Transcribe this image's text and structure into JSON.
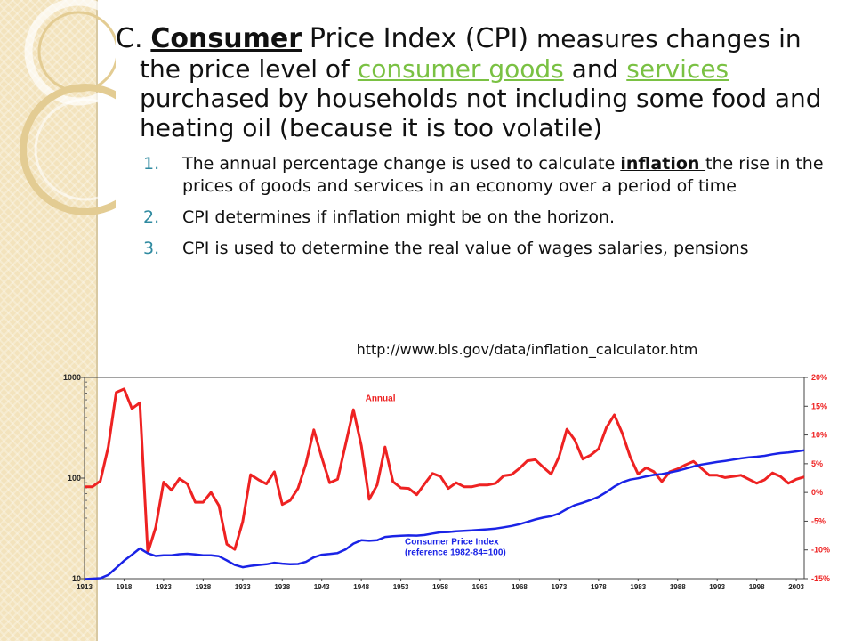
{
  "slide": {
    "heading": {
      "marker": "C.",
      "keyword": "Consumer",
      "title_rest": "Price Index (CPI)",
      "text_1": "measures changes in the price level of",
      "link_1": "consumer goods",
      "text_2": "and",
      "link_2": "services",
      "text_3": "purchased by households not including some food and heating oil (because it is too volatile)"
    },
    "points": [
      {
        "num": "1.",
        "before": "The annual percentage change is used to calculate",
        "emphasis": "inflation ",
        "after": " the rise in the prices of goods and services in an economy over a period of time"
      },
      {
        "num": "2.",
        "text": "CPI determines if inflation might be on the horizon."
      },
      {
        "num": "3.",
        "text": "CPI is used to determine the real value of wages salaries, pensions"
      }
    ],
    "url": "http://www.bls.gov/data/inflation_calculator.htm"
  },
  "chart_data": {
    "type": "line",
    "series": [
      {
        "name": "Annual",
        "axis": "right",
        "color": "#ee2222",
        "x": [
          1913,
          1914,
          1915,
          1916,
          1917,
          1918,
          1919,
          1920,
          1921,
          1922,
          1923,
          1924,
          1925,
          1926,
          1927,
          1928,
          1929,
          1930,
          1931,
          1932,
          1933,
          1934,
          1935,
          1936,
          1937,
          1938,
          1939,
          1940,
          1941,
          1942,
          1943,
          1944,
          1945,
          1946,
          1947,
          1948,
          1949,
          1950,
          1951,
          1952,
          1953,
          1954,
          1955,
          1956,
          1957,
          1958,
          1959,
          1960,
          1961,
          1962,
          1963,
          1964,
          1965,
          1966,
          1967,
          1968,
          1969,
          1970,
          1971,
          1972,
          1973,
          1974,
          1975,
          1976,
          1977,
          1978,
          1979,
          1980,
          1981,
          1982,
          1983,
          1984,
          1985,
          1986,
          1987,
          1988,
          1989,
          1990,
          1991,
          1992,
          1993,
          1994,
          1995,
          1996,
          1997,
          1998,
          1999,
          2000,
          2001,
          2002,
          2003,
          2004
        ],
        "values": [
          1.0,
          1.0,
          2.0,
          7.9,
          17.4,
          18.0,
          14.6,
          15.6,
          -10.5,
          -6.1,
          1.8,
          0.4,
          2.4,
          1.5,
          -1.7,
          -1.7,
          0.0,
          -2.3,
          -9.0,
          -9.9,
          -5.1,
          3.1,
          2.2,
          1.5,
          3.6,
          -2.1,
          -1.4,
          0.7,
          5.0,
          10.9,
          6.1,
          1.7,
          2.3,
          8.3,
          14.4,
          8.1,
          -1.2,
          1.3,
          7.9,
          1.9,
          0.8,
          0.7,
          -0.4,
          1.5,
          3.3,
          2.8,
          0.7,
          1.7,
          1.0,
          1.0,
          1.3,
          1.3,
          1.6,
          2.9,
          3.1,
          4.2,
          5.5,
          5.7,
          4.4,
          3.2,
          6.2,
          11.0,
          9.1,
          5.8,
          6.5,
          7.6,
          11.3,
          13.5,
          10.3,
          6.2,
          3.2,
          4.3,
          3.6,
          1.9,
          3.6,
          4.1,
          4.8,
          5.4,
          4.2,
          3.0,
          3.0,
          2.6,
          2.8,
          3.0,
          2.3,
          1.6,
          2.2,
          3.4,
          2.8,
          1.6,
          2.3,
          2.7
        ]
      },
      {
        "name": "Consumer Price Index",
        "axis": "left",
        "color": "#1a23e6",
        "x": [
          1913,
          1914,
          1915,
          1916,
          1917,
          1918,
          1919,
          1920,
          1921,
          1922,
          1923,
          1924,
          1925,
          1926,
          1927,
          1928,
          1929,
          1930,
          1931,
          1932,
          1933,
          1934,
          1935,
          1936,
          1937,
          1938,
          1939,
          1940,
          1941,
          1942,
          1943,
          1944,
          1945,
          1946,
          1947,
          1948,
          1949,
          1950,
          1951,
          1952,
          1953,
          1954,
          1955,
          1956,
          1957,
          1958,
          1959,
          1960,
          1961,
          1962,
          1963,
          1964,
          1965,
          1966,
          1967,
          1968,
          1969,
          1970,
          1971,
          1972,
          1973,
          1974,
          1975,
          1976,
          1977,
          1978,
          1979,
          1980,
          1981,
          1982,
          1983,
          1984,
          1985,
          1986,
          1987,
          1988,
          1989,
          1990,
          1991,
          1992,
          1993,
          1994,
          1995,
          1996,
          1997,
          1998,
          1999,
          2000,
          2001,
          2002,
          2003,
          2004
        ],
        "values": [
          9.9,
          10.0,
          10.1,
          10.9,
          12.8,
          15.1,
          17.3,
          20.0,
          17.9,
          16.8,
          17.1,
          17.1,
          17.5,
          17.7,
          17.4,
          17.1,
          17.1,
          16.7,
          15.2,
          13.7,
          13.0,
          13.4,
          13.7,
          13.9,
          14.4,
          14.1,
          13.9,
          14.0,
          14.7,
          16.3,
          17.3,
          17.6,
          18.0,
          19.5,
          22.3,
          24.1,
          23.8,
          24.1,
          26.0,
          26.5,
          26.7,
          26.9,
          26.8,
          27.2,
          28.1,
          28.9,
          29.1,
          29.6,
          29.9,
          30.2,
          30.6,
          31.0,
          31.5,
          32.4,
          33.4,
          34.8,
          36.7,
          38.8,
          40.5,
          41.8,
          44.4,
          49.3,
          53.8,
          56.9,
          60.6,
          65.2,
          72.6,
          82.4,
          90.9,
          96.5,
          99.6,
          103.9,
          107.6,
          109.6,
          113.6,
          118.3,
          124.0,
          130.7,
          136.2,
          140.3,
          144.5,
          148.2,
          152.4,
          156.9,
          160.5,
          163.0,
          166.6,
          172.2,
          177.1,
          179.9,
          184.0,
          188.9
        ]
      }
    ],
    "annotations": [
      "Annual",
      "Consumer Price Index",
      "(reference 1982-84=100)"
    ],
    "x_ticks": [
      "1913",
      "1918",
      "1923",
      "1928",
      "1933",
      "1938",
      "1943",
      "1948",
      "1953",
      "1958",
      "1963",
      "1968",
      "1973",
      "1978",
      "1983",
      "1988",
      "1993",
      "1998",
      "2003"
    ],
    "y_left": {
      "scale": "log",
      "range": [
        10,
        1000
      ],
      "ticks": [
        "1000",
        "100",
        "10"
      ]
    },
    "y_right": {
      "range": [
        -15,
        20
      ],
      "ticks": [
        "20%",
        "15%",
        "10%",
        "5%",
        "0%",
        "-5%",
        "-10%",
        "-15%"
      ]
    },
    "grid": false,
    "legend": "inline annotations"
  }
}
